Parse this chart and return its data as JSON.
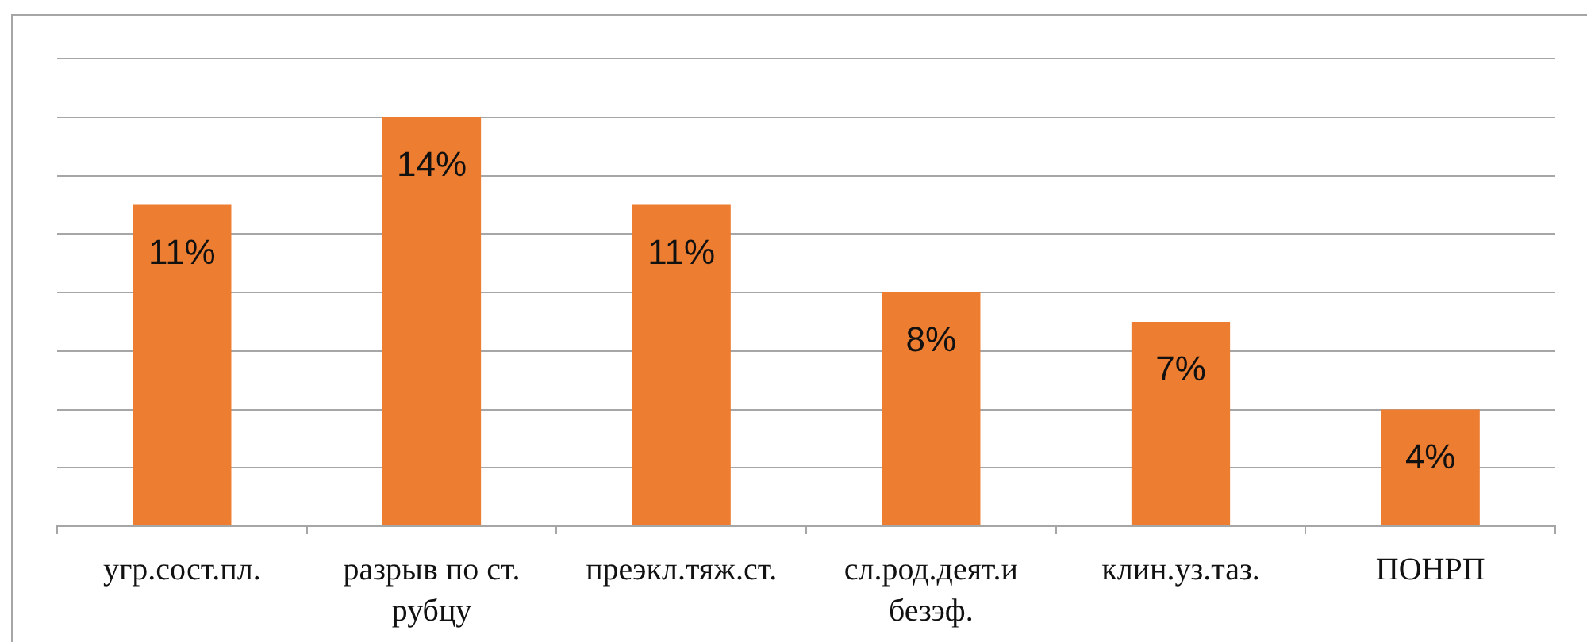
{
  "chart_data": {
    "type": "bar",
    "categories": [
      "угр.сост.пл.",
      "разрыв по ст. рубцу",
      "преэкл.тяж.ст.",
      "сл.род.деят.и безэф.",
      "клин.уз.таз.",
      "ПОНРП"
    ],
    "values": [
      11,
      14,
      11,
      8,
      7,
      4
    ],
    "color": "#ed7d31",
    "value_labels": [
      "11%",
      "14%",
      "11%",
      "8%",
      "7%",
      "4%"
    ],
    "ylim": [
      0,
      16
    ],
    "yticks": [
      {
        "value": 0,
        "label": null
      },
      {
        "value": 2,
        "label": null
      },
      {
        "value": 4,
        "label": null
      },
      {
        "value": 6,
        "label": null
      },
      {
        "value": 8,
        "label": null
      },
      {
        "value": 10,
        "label": null
      },
      {
        "value": 12,
        "label": null
      },
      {
        "value": 14,
        "label": null
      },
      {
        "value": 16,
        "label": null
      }
    ],
    "grid": "y",
    "tick_labels": "x",
    "legend": false
  }
}
